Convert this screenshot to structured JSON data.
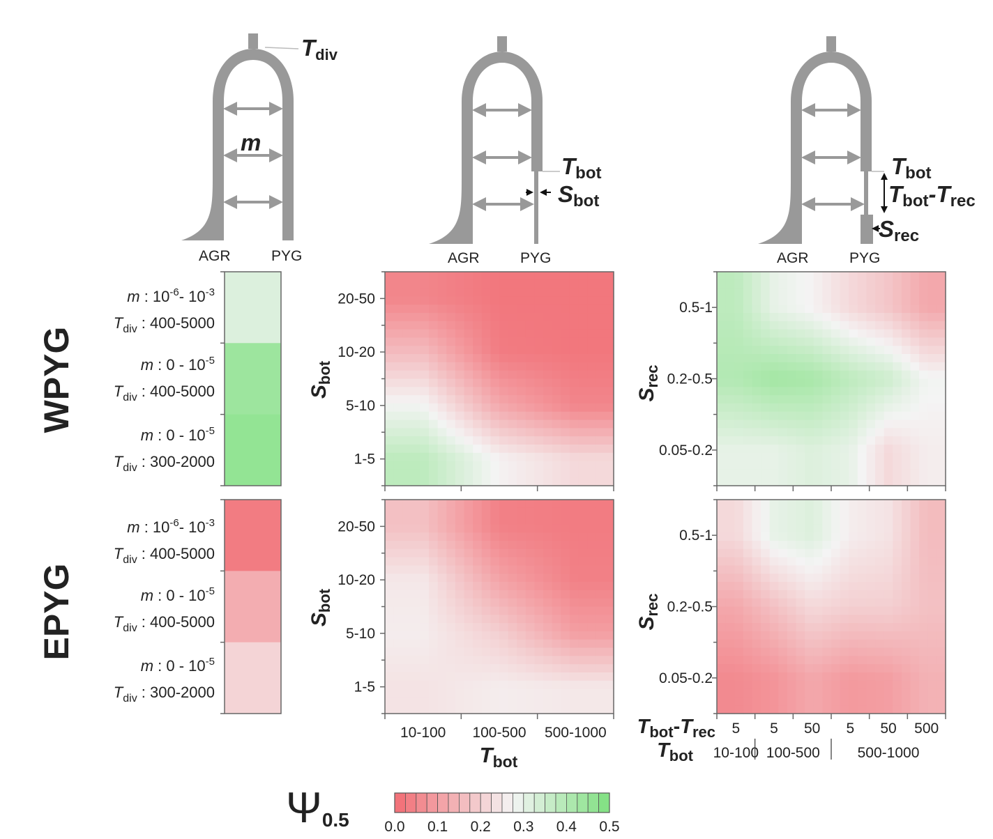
{
  "diagram_models": [
    {
      "name": "isolation-with-migration",
      "populations": [
        "AGR",
        "PYG"
      ],
      "labels": {
        "divergence": "T",
        "divergence_sub": "div",
        "migration": "m"
      }
    },
    {
      "name": "bottleneck",
      "populations": [
        "AGR",
        "PYG"
      ],
      "labels": {
        "time": "T",
        "time_sub": "bot",
        "size": "S",
        "size_sub": "bot"
      }
    },
    {
      "name": "bottleneck-recovery",
      "populations": [
        "AGR",
        "PYG"
      ],
      "labels": {
        "time": "T",
        "time_sub": "bot",
        "duration_a": "T",
        "duration_a_sub": "bot",
        "duration_dash": "-",
        "duration_b": "T",
        "duration_b_sub": "rec",
        "size": "S",
        "size_sub": "rec"
      }
    }
  ],
  "row_labels": [
    "WPYG",
    "EPYG"
  ],
  "scenario_rows": [
    {
      "m_label": "m",
      "m_value": " : 10",
      "m_exp": "-6",
      "m_tail": "- 10",
      "m_tail_exp": "-3",
      "t_label": "T",
      "t_sub": "div",
      "t_value": " : 400-5000"
    },
    {
      "m_label": "m",
      "m_value": " : 0 - 10",
      "m_exp": "-5",
      "m_tail": "",
      "m_tail_exp": "",
      "t_label": "T",
      "t_sub": "div",
      "t_value": " : 400-5000"
    },
    {
      "m_label": "m",
      "m_value": " : 0 - 10",
      "m_exp": "-5",
      "m_tail": "",
      "m_tail_exp": "",
      "t_label": "T",
      "t_sub": "div",
      "t_value": " : 300-2000"
    }
  ],
  "panel_axes": {
    "sbot_label": "S",
    "sbot_sub": "bot",
    "sbot_ticks": [
      "20-50",
      "10-20",
      "5-10",
      "1-5"
    ],
    "tbot_label": "T",
    "tbot_sub": "bot",
    "tbot_ticks": [
      "10-100",
      "100-500",
      "500-1000"
    ],
    "srec_label": "S",
    "srec_sub": "rec",
    "srec_ticks": [
      "0.5-1",
      "0.2-0.5",
      "0.05-0.2"
    ],
    "tdiff_label": "T",
    "tdiff_sub1": "bot",
    "tdiff_dash": "-",
    "tdiff_label2": "T",
    "tdiff_sub2": "rec",
    "tdiff_ticks": [
      "5",
      "5",
      "50",
      "5",
      "50",
      "500"
    ],
    "tbot2_label": "T",
    "tbot2_sub": "bot",
    "tbot2_groups": [
      "10-100",
      "100-500",
      "500-1000"
    ]
  },
  "colorbar": {
    "symbol": "Ψ",
    "subscript": "0.5",
    "ticks": [
      "0.0",
      "0.1",
      "0.2",
      "0.3",
      "0.4",
      "0.5"
    ],
    "range": [
      0,
      0.5
    ],
    "color_low": "#f26d74",
    "color_mid": "#f4f4f4",
    "color_high": "#7ee07f"
  },
  "chart_data": [
    {
      "type": "heatmap",
      "panel": "WPYG isolation-with-migration",
      "rows": [
        "m: 10^-6 - 10^-3, Tdiv: 400-5000",
        "m: 0 - 10^-5, Tdiv: 400-5000",
        "m: 0 - 10^-5, Tdiv: 300-2000"
      ],
      "values": [
        0.32,
        0.44,
        0.46
      ]
    },
    {
      "type": "heatmap",
      "panel": "EPYG isolation-with-migration",
      "rows": [
        "m: 10^-6 - 10^-3, Tdiv: 400-5000",
        "m: 0 - 10^-5, Tdiv: 400-5000",
        "m: 0 - 10^-5, Tdiv: 300-2000"
      ],
      "values": [
        0.03,
        0.13,
        0.21
      ]
    },
    {
      "type": "heatmap",
      "panel": "WPYG bottleneck",
      "x": [
        "10-100",
        "100-500",
        "500-1000"
      ],
      "y": [
        "20-50",
        "10-20",
        "5-10",
        "1-5"
      ],
      "values": [
        [
          0.05,
          0.02,
          0.02
        ],
        [
          0.16,
          0.03,
          0.02
        ],
        [
          0.28,
          0.12,
          0.05
        ],
        [
          0.38,
          0.27,
          0.22
        ]
      ],
      "zlim": [
        0,
        0.5
      ]
    },
    {
      "type": "heatmap",
      "panel": "EPYG bottleneck",
      "x": [
        "10-100",
        "100-500",
        "500-1000"
      ],
      "y": [
        "20-50",
        "10-20",
        "5-10",
        "1-5"
      ],
      "values": [
        [
          0.17,
          0.04,
          0.03
        ],
        [
          0.25,
          0.11,
          0.04
        ],
        [
          0.26,
          0.2,
          0.1
        ],
        [
          0.24,
          0.26,
          0.25
        ]
      ],
      "zlim": [
        0,
        0.5
      ]
    },
    {
      "type": "heatmap",
      "panel": "WPYG bottleneck-recovery",
      "x": [
        "5 | 10-100",
        "5 | 100-500",
        "50 | 100-500",
        "5 | 500-1000",
        "50 | 500-1000",
        "500 | 500-1000"
      ],
      "y": [
        "0.5-1",
        "0.2-0.5",
        "0.05-0.2"
      ],
      "values": [
        [
          0.38,
          0.3,
          0.27,
          0.22,
          0.18,
          0.12
        ],
        [
          0.4,
          0.43,
          0.42,
          0.38,
          0.35,
          0.28
        ],
        [
          0.3,
          0.3,
          0.32,
          0.3,
          0.22,
          0.26
        ]
      ],
      "zlim": [
        0,
        0.5
      ]
    },
    {
      "type": "heatmap",
      "panel": "EPYG bottleneck-recovery",
      "x": [
        "5 | 10-100",
        "5 | 100-500",
        "50 | 100-500",
        "5 | 500-1000",
        "50 | 500-1000",
        "500 | 500-1000"
      ],
      "y": [
        "0.5-1",
        "0.2-0.5",
        "0.05-0.2"
      ],
      "values": [
        [
          0.22,
          0.3,
          0.32,
          0.26,
          0.24,
          0.16
        ],
        [
          0.12,
          0.17,
          0.22,
          0.2,
          0.2,
          0.17
        ],
        [
          0.06,
          0.08,
          0.12,
          0.09,
          0.1,
          0.14
        ]
      ],
      "zlim": [
        0,
        0.5
      ]
    }
  ]
}
